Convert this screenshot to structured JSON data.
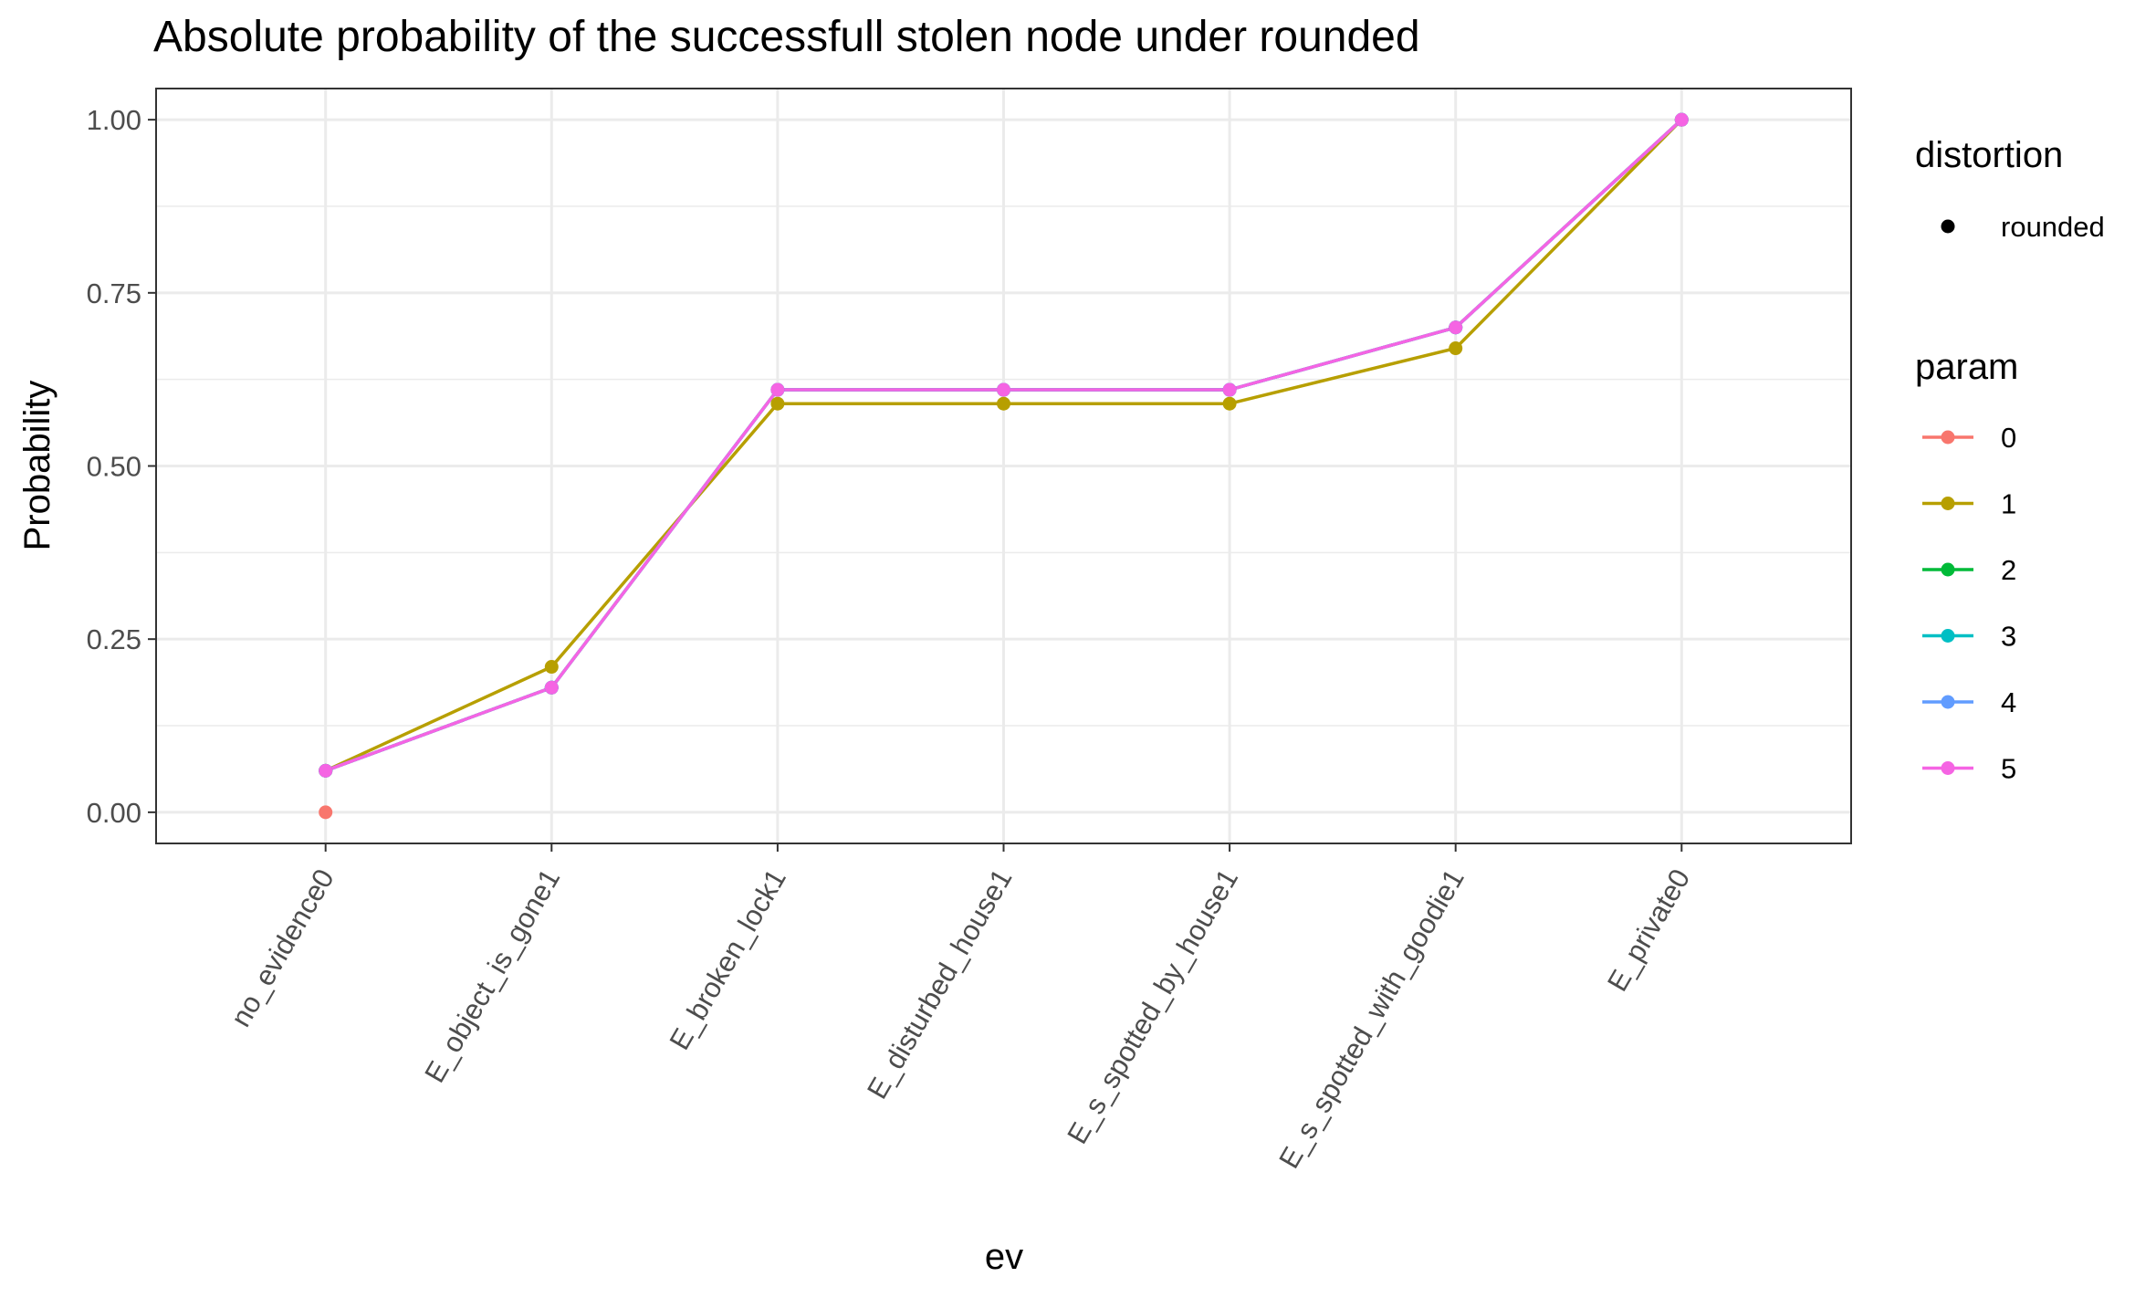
{
  "chart_data": {
    "type": "line",
    "title": "Absolute probability of the successfull stolen node under rounded",
    "xlabel": "ev",
    "ylabel": "Probability",
    "categories": [
      "no_evidence0",
      "E_object_is_gone1",
      "E_broken_lock1",
      "E_disturbed_house1",
      "E_s_spotted_by_house1",
      "E_s_spotted_with_goodie1",
      "E_private0"
    ],
    "ylim": [
      -0.045,
      1.045
    ],
    "yticks": [
      0,
      0.25,
      0.5,
      0.75,
      1
    ],
    "ytick_labels": [
      "0.00",
      "0.25",
      "0.50",
      "0.75",
      "1.00"
    ],
    "grid": true,
    "legend_position": "right",
    "legends": {
      "shape": {
        "title": "distortion",
        "items": [
          "rounded"
        ]
      },
      "color": {
        "title": "param",
        "items": [
          "0",
          "1",
          "2",
          "3",
          "4",
          "5"
        ]
      }
    },
    "series": [
      {
        "name": "0",
        "color": "#F8766D",
        "values": [
          0.0,
          null,
          null,
          null,
          null,
          null,
          null
        ]
      },
      {
        "name": "1",
        "color": "#B79F00",
        "values": [
          0.06,
          0.21,
          0.59,
          0.59,
          0.59,
          0.67,
          1.0
        ]
      },
      {
        "name": "2",
        "color": "#00BA38",
        "values": [
          0.06,
          0.18,
          0.61,
          0.61,
          0.61,
          0.7,
          1.0
        ]
      },
      {
        "name": "3",
        "color": "#00BFC4",
        "values": [
          0.06,
          0.18,
          0.61,
          0.61,
          0.61,
          0.7,
          1.0
        ]
      },
      {
        "name": "4",
        "color": "#619CFF",
        "values": [
          0.06,
          0.18,
          0.61,
          0.61,
          0.61,
          0.7,
          1.0
        ]
      },
      {
        "name": "5",
        "color": "#F564E3",
        "values": [
          0.06,
          0.18,
          0.61,
          0.61,
          0.61,
          0.7,
          1.0
        ]
      }
    ]
  }
}
